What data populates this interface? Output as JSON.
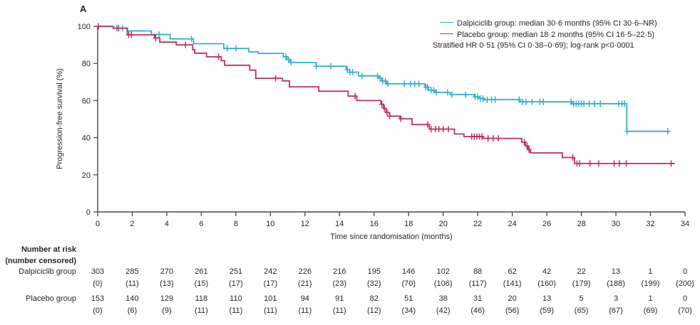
{
  "panel_label": "A",
  "legend": {
    "entries": [
      {
        "label": "Dalpiciclib group: median 30·6 months (95% CI 30·6–NR)",
        "color": "#31AECB"
      },
      {
        "label": "Placebo group: median 18·2 months (95% CI 16·5–22·5)",
        "color": "#BE2F5B"
      }
    ],
    "note": "Stratified HR 0·51 (95% CI 0·38–0·69); log-rank p<0·0001"
  },
  "chart_data": {
    "type": "line",
    "subtype": "kaplan-meier-step",
    "title": "",
    "xlabel": "Time since randomisation (months)",
    "ylabel": "Progression-free survival (%)",
    "xlim": [
      0,
      34
    ],
    "ylim": [
      0,
      100
    ],
    "x_ticks": [
      0,
      2,
      4,
      6,
      8,
      10,
      12,
      14,
      16,
      18,
      20,
      22,
      24,
      26,
      28,
      30,
      32,
      34
    ],
    "y_ticks": [
      0,
      20,
      40,
      60,
      80,
      100
    ],
    "grid": false,
    "legend_position": "top-right",
    "series": [
      {
        "name": "Dalpiciclib group",
        "color": "#31AECB",
        "points": [
          [
            0,
            100
          ],
          [
            0.9,
            100
          ],
          [
            0.9,
            99
          ],
          [
            1.7,
            99
          ],
          [
            1.7,
            97.5
          ],
          [
            3.1,
            97.5
          ],
          [
            3.1,
            95.6
          ],
          [
            4.2,
            95.6
          ],
          [
            4.2,
            93.2
          ],
          [
            5.55,
            93.2
          ],
          [
            5.55,
            90.6
          ],
          [
            7.3,
            90.6
          ],
          [
            7.3,
            88.1
          ],
          [
            8.75,
            88.1
          ],
          [
            8.75,
            86.2
          ],
          [
            9.3,
            86.2
          ],
          [
            9.3,
            85.4
          ],
          [
            10.75,
            85.4
          ],
          [
            10.75,
            83.6
          ],
          [
            10.95,
            83.6
          ],
          [
            10.95,
            82.1
          ],
          [
            11.15,
            82.1
          ],
          [
            11.15,
            80.5
          ],
          [
            12.65,
            80.5
          ],
          [
            12.65,
            78.5
          ],
          [
            14.4,
            78.5
          ],
          [
            14.4,
            76.6
          ],
          [
            14.6,
            76.6
          ],
          [
            14.6,
            75.3
          ],
          [
            15.1,
            75.3
          ],
          [
            15.1,
            73.3
          ],
          [
            16.25,
            73.3
          ],
          [
            16.25,
            72
          ],
          [
            16.45,
            72
          ],
          [
            16.45,
            70.5
          ],
          [
            16.7,
            70.5
          ],
          [
            16.7,
            69
          ],
          [
            18.95,
            69
          ],
          [
            18.95,
            67.2
          ],
          [
            19.15,
            67.2
          ],
          [
            19.15,
            65.6
          ],
          [
            19.5,
            65.6
          ],
          [
            19.5,
            64.4
          ],
          [
            20.4,
            64.4
          ],
          [
            20.4,
            63.2
          ],
          [
            21.8,
            63.2
          ],
          [
            21.8,
            62
          ],
          [
            22.1,
            62
          ],
          [
            22.1,
            61.2
          ],
          [
            22.35,
            61.2
          ],
          [
            22.35,
            60.5
          ],
          [
            24.45,
            60.5
          ],
          [
            24.45,
            59.3
          ],
          [
            27.45,
            59.3
          ],
          [
            27.45,
            58.3
          ],
          [
            30.63,
            58.3
          ],
          [
            30.63,
            43.4
          ],
          [
            33.1,
            43.4
          ]
        ],
        "censor_times": [
          1.1,
          1.45,
          3.55,
          5.43,
          7.5,
          8.0,
          10.9,
          11.05,
          11.2,
          12.65,
          13.5,
          14.45,
          14.6,
          14.75,
          15.3,
          16.2,
          16.35,
          16.5,
          16.65,
          16.8,
          17.75,
          18.1,
          18.35,
          18.6,
          19.0,
          19.1,
          19.3,
          19.45,
          19.6,
          20.25,
          20.5,
          21.3,
          21.85,
          22.0,
          22.15,
          22.3,
          22.55,
          22.8,
          23.0,
          24.4,
          24.6,
          24.8,
          25.15,
          25.6,
          25.8,
          27.4,
          27.55,
          27.7,
          27.85,
          28.0,
          28.15,
          28.45,
          28.75,
          29.1,
          30.15,
          30.35,
          30.5,
          30.65,
          33.0
        ]
      },
      {
        "name": "Placebo group",
        "color": "#BE2F5B",
        "points": [
          [
            0,
            100
          ],
          [
            0.9,
            100
          ],
          [
            0.9,
            99
          ],
          [
            1.72,
            99
          ],
          [
            1.72,
            95.4
          ],
          [
            3.3,
            95.4
          ],
          [
            3.3,
            93.7
          ],
          [
            3.6,
            93.7
          ],
          [
            3.6,
            91.5
          ],
          [
            4.55,
            91.5
          ],
          [
            4.55,
            90
          ],
          [
            5.5,
            90
          ],
          [
            5.5,
            87.4
          ],
          [
            5.62,
            87.4
          ],
          [
            5.62,
            85.5
          ],
          [
            6.3,
            85.5
          ],
          [
            6.3,
            83.6
          ],
          [
            7.15,
            83.6
          ],
          [
            7.15,
            81.5
          ],
          [
            7.35,
            81.5
          ],
          [
            7.35,
            79
          ],
          [
            8.8,
            79
          ],
          [
            8.8,
            76.4
          ],
          [
            9.15,
            76.4
          ],
          [
            9.15,
            72
          ],
          [
            10.7,
            72
          ],
          [
            10.7,
            70.6
          ],
          [
            11.1,
            70.6
          ],
          [
            11.1,
            67.4
          ],
          [
            12.8,
            67.4
          ],
          [
            12.8,
            65
          ],
          [
            14.5,
            65
          ],
          [
            14.5,
            62.4
          ],
          [
            15.0,
            62.4
          ],
          [
            15.0,
            60
          ],
          [
            16.4,
            60
          ],
          [
            16.4,
            58
          ],
          [
            16.55,
            58
          ],
          [
            16.55,
            55.8
          ],
          [
            16.7,
            55.8
          ],
          [
            16.7,
            53.6
          ],
          [
            16.9,
            53.6
          ],
          [
            16.9,
            51.6
          ],
          [
            17.5,
            51.6
          ],
          [
            17.5,
            50.2
          ],
          [
            18.2,
            50.2
          ],
          [
            18.2,
            47.1
          ],
          [
            19.2,
            47.1
          ],
          [
            19.2,
            44.6
          ],
          [
            20.65,
            44.6
          ],
          [
            20.65,
            42
          ],
          [
            21.2,
            42
          ],
          [
            21.2,
            40.6
          ],
          [
            22.3,
            40.6
          ],
          [
            22.3,
            39.6
          ],
          [
            24.55,
            39.6
          ],
          [
            24.55,
            37.6
          ],
          [
            24.75,
            37.6
          ],
          [
            24.75,
            35.6
          ],
          [
            24.9,
            35.6
          ],
          [
            24.9,
            33.6
          ],
          [
            25.05,
            33.6
          ],
          [
            25.05,
            31.8
          ],
          [
            26.9,
            31.8
          ],
          [
            26.9,
            29.3
          ],
          [
            27.6,
            29.3
          ],
          [
            27.6,
            26.1
          ],
          [
            33.4,
            26.1
          ]
        ],
        "censor_times": [
          0.05,
          1.2,
          1.8,
          1.95,
          3.36,
          5.08,
          7.0,
          10.3,
          14.9,
          16.45,
          16.6,
          16.75,
          16.9,
          17.55,
          19.1,
          19.3,
          19.55,
          19.75,
          20.0,
          20.3,
          21.65,
          21.8,
          21.95,
          22.1,
          22.25,
          22.6,
          22.9,
          23.2,
          24.7,
          24.85,
          24.97,
          27.5,
          27.75,
          27.9,
          28.5,
          29.0,
          29.9,
          30.2,
          30.6,
          33.2
        ]
      }
    ]
  },
  "risk_table": {
    "header_line1": "Number at risk",
    "header_line2": "(number censored)",
    "times": [
      0,
      2,
      4,
      6,
      8,
      10,
      12,
      14,
      16,
      18,
      20,
      22,
      24,
      26,
      28,
      30,
      32,
      34
    ],
    "rows": [
      {
        "label": "Dalpiciclib group",
        "n": [
          "303",
          "285",
          "270",
          "261",
          "251",
          "242",
          "226",
          "216",
          "195",
          "146",
          "102",
          "88",
          "62",
          "42",
          "22",
          "13",
          "1",
          "0"
        ],
        "censored": [
          "(0)",
          "(11)",
          "(13)",
          "(15)",
          "(17)",
          "(17)",
          "(21)",
          "(23)",
          "(32)",
          "(70)",
          "(106)",
          "(117)",
          "(141)",
          "(160)",
          "(179)",
          "(188)",
          "(199)",
          "(200)"
        ]
      },
      {
        "label": "Placebo group",
        "n": [
          "153",
          "140",
          "129",
          "118",
          "110",
          "101",
          "94",
          "91",
          "82",
          "51",
          "38",
          "31",
          "20",
          "13",
          "5",
          "3",
          "1",
          "0"
        ],
        "censored": [
          "(0)",
          "(6)",
          "(9)",
          "(11)",
          "(11)",
          "(11)",
          "(11)",
          "(11)",
          "(12)",
          "(34)",
          "(42)",
          "(46)",
          "(56)",
          "(59)",
          "(65)",
          "(67)",
          "(69)",
          "(70)"
        ]
      }
    ]
  }
}
